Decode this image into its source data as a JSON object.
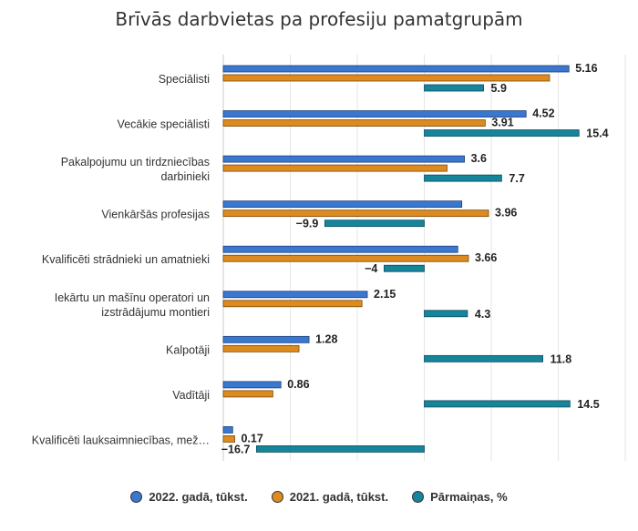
{
  "chart_data": {
    "type": "bar",
    "orientation": "horizontal",
    "title": "Brīvās darbvietas pa profesiju pamatgrupām",
    "categories": [
      [
        "Speciālisti"
      ],
      [
        "Vecākie speciālisti"
      ],
      [
        "Pakalpojumu un tirdzniecības",
        "darbinieki"
      ],
      [
        "Vienkāršās profesijas"
      ],
      [
        "Kvalificēti strādnieki un amatnieki"
      ],
      [
        "Iekārtu un mašīnu operatori un",
        "izstrādājumu montieri"
      ],
      [
        "Kalpotāji"
      ],
      [
        "Vadītāji"
      ],
      [
        "Kvalificēti lauksaimniecības, mež…"
      ]
    ],
    "series": [
      {
        "name": "2022. gadā, tūkst.",
        "color": "#3a78d0",
        "values": [
          5.16,
          4.52,
          3.6,
          3.56,
          3.5,
          2.15,
          1.28,
          0.86,
          0.14
        ],
        "labels": [
          "5.16",
          "4.52",
          "3.6",
          "",
          "",
          "2.15",
          "1.28",
          "0.86",
          ""
        ]
      },
      {
        "name": "2021. gadā, tūkst.",
        "color": "#dd8a1e",
        "values": [
          4.87,
          3.91,
          3.34,
          3.96,
          3.66,
          2.07,
          1.13,
          0.74,
          0.17
        ],
        "labels": [
          "",
          "3.91",
          "",
          "3.96",
          "3.66",
          "",
          "",
          "",
          "0.17"
        ]
      },
      {
        "name": "Pārmaiņas, %",
        "color": "#16849a",
        "values": [
          5.9,
          15.4,
          7.7,
          -9.9,
          -4,
          4.3,
          11.8,
          14.5,
          -16.7
        ],
        "labels": [
          "5.9",
          "15.4",
          "7.7",
          "−9.9",
          "−4",
          "4.3",
          "11.8",
          "14.5",
          "−16.7"
        ]
      }
    ],
    "xlim_thousands": [
      0,
      6
    ],
    "xlim_percent": [
      -20,
      20
    ],
    "grid": true,
    "legend_position": "bottom"
  }
}
